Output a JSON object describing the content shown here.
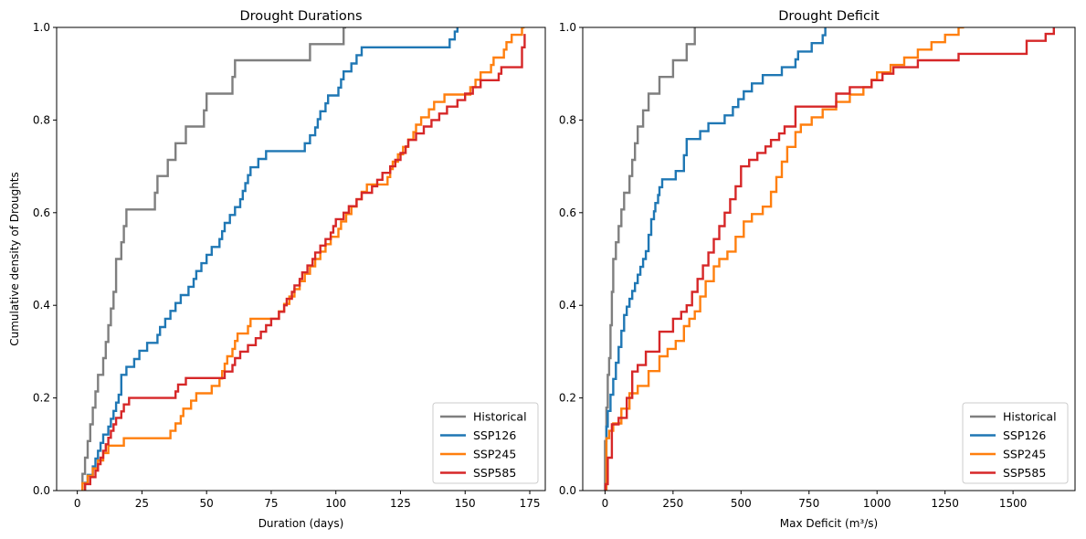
{
  "chart_data": [
    {
      "type": "line",
      "step": true,
      "title": "Drought Durations",
      "xlabel": "Duration (days)",
      "ylabel": "Cumulative density of Droughts",
      "xlim": [
        -8,
        181
      ],
      "ylim": [
        0,
        1
      ],
      "xticks": [
        0,
        25,
        50,
        75,
        100,
        125,
        150,
        175
      ],
      "yticks": [
        0.0,
        0.2,
        0.4,
        0.6,
        0.8,
        1.0
      ],
      "legend": "lower-right",
      "grid": false,
      "series": [
        {
          "name": "Historical",
          "color": "#7f7f7f",
          "x": [
            2,
            3,
            4,
            5,
            6,
            7,
            8,
            10,
            11,
            12,
            13,
            14,
            15,
            17,
            18,
            19,
            20,
            30,
            31,
            35,
            38,
            40,
            42,
            43,
            49,
            50,
            51,
            60,
            61,
            62,
            90,
            91,
            103,
            104
          ],
          "y": [
            0.036,
            0.071,
            0.107,
            0.143,
            0.179,
            0.214,
            0.25,
            0.286,
            0.321,
            0.357,
            0.393,
            0.429,
            0.5,
            0.536,
            0.571,
            0.607,
            0.607,
            0.643,
            0.679,
            0.714,
            0.75,
            0.75,
            0.786,
            0.786,
            0.821,
            0.857,
            0.857,
            0.893,
            0.929,
            0.929,
            0.964,
            0.964,
            1.0,
            1.0
          ]
        },
        {
          "name": "SSP126",
          "color": "#1f77b4",
          "x": [
            3,
            4,
            6,
            7,
            8,
            9,
            10,
            12,
            13,
            14,
            15,
            16,
            17,
            19,
            22,
            24,
            27,
            31,
            32,
            34,
            36,
            38,
            40,
            43,
            45,
            46,
            48,
            50,
            52,
            55,
            56,
            57,
            59,
            61,
            63,
            64,
            65,
            66,
            67,
            69,
            70,
            73,
            75,
            85,
            88,
            90,
            92,
            93,
            94,
            96,
            97,
            99,
            101,
            102,
            103,
            105,
            106,
            108,
            110,
            118,
            126,
            144,
            145,
            146,
            147
          ],
          "y": [
            0.017,
            0.034,
            0.052,
            0.069,
            0.086,
            0.103,
            0.121,
            0.138,
            0.155,
            0.172,
            0.19,
            0.207,
            0.25,
            0.267,
            0.284,
            0.302,
            0.319,
            0.336,
            0.353,
            0.371,
            0.388,
            0.405,
            0.422,
            0.44,
            0.457,
            0.474,
            0.491,
            0.509,
            0.526,
            0.543,
            0.56,
            0.578,
            0.595,
            0.612,
            0.629,
            0.647,
            0.664,
            0.681,
            0.698,
            0.698,
            0.716,
            0.733,
            0.733,
            0.733,
            0.75,
            0.767,
            0.784,
            0.802,
            0.819,
            0.836,
            0.853,
            0.853,
            0.87,
            0.888,
            0.905,
            0.905,
            0.922,
            0.94,
            0.957,
            0.957,
            0.957,
            0.974,
            0.974,
            0.991,
            1.0
          ]
        },
        {
          "name": "SSP245",
          "color": "#ff7f0e",
          "x": [
            2,
            4,
            6,
            8,
            10,
            12,
            18,
            36,
            38,
            40,
            41,
            44,
            46,
            52,
            55,
            56,
            57,
            58,
            60,
            61,
            62,
            66,
            67,
            75,
            78,
            80,
            82,
            84,
            86,
            88,
            90,
            92,
            94,
            96,
            98,
            101,
            102,
            104,
            106,
            108,
            110,
            112,
            120,
            121,
            122,
            124,
            126,
            128,
            130,
            131,
            133,
            136,
            138,
            142,
            152,
            154,
            156,
            160,
            161,
            165,
            166,
            168,
            170,
            172,
            173
          ],
          "y": [
            0.016,
            0.032,
            0.048,
            0.065,
            0.081,
            0.097,
            0.113,
            0.129,
            0.145,
            0.161,
            0.177,
            0.194,
            0.21,
            0.226,
            0.242,
            0.258,
            0.274,
            0.29,
            0.306,
            0.323,
            0.339,
            0.355,
            0.371,
            0.371,
            0.387,
            0.403,
            0.419,
            0.435,
            0.452,
            0.468,
            0.484,
            0.5,
            0.516,
            0.532,
            0.548,
            0.565,
            0.581,
            0.597,
            0.613,
            0.629,
            0.645,
            0.661,
            0.677,
            0.694,
            0.71,
            0.726,
            0.742,
            0.758,
            0.774,
            0.79,
            0.806,
            0.823,
            0.839,
            0.855,
            0.871,
            0.887,
            0.903,
            0.919,
            0.935,
            0.952,
            0.968,
            0.984,
            0.984,
            1.0,
            1.0
          ]
        },
        {
          "name": "SSP585",
          "color": "#d62728",
          "x": [
            3,
            5,
            7,
            8,
            9,
            10,
            11,
            12,
            13,
            14,
            15,
            17,
            18,
            20,
            24,
            27,
            38,
            39,
            42,
            44,
            56,
            57,
            60,
            61,
            63,
            66,
            69,
            71,
            73,
            75,
            78,
            80,
            81,
            83,
            84,
            86,
            87,
            89,
            91,
            92,
            94,
            96,
            98,
            99,
            100,
            103,
            105,
            108,
            110,
            113,
            114,
            116,
            118,
            121,
            123,
            125,
            127,
            128,
            131,
            134,
            137,
            140,
            143,
            147,
            150,
            153,
            156,
            163,
            164,
            172,
            173
          ],
          "y": [
            0.014,
            0.029,
            0.043,
            0.057,
            0.071,
            0.086,
            0.1,
            0.114,
            0.129,
            0.143,
            0.157,
            0.171,
            0.186,
            0.2,
            0.2,
            0.2,
            0.214,
            0.229,
            0.243,
            0.243,
            0.243,
            0.257,
            0.271,
            0.286,
            0.3,
            0.314,
            0.329,
            0.343,
            0.357,
            0.371,
            0.386,
            0.4,
            0.414,
            0.429,
            0.443,
            0.457,
            0.471,
            0.486,
            0.5,
            0.514,
            0.529,
            0.543,
            0.557,
            0.571,
            0.586,
            0.6,
            0.614,
            0.629,
            0.643,
            0.643,
            0.657,
            0.671,
            0.686,
            0.7,
            0.714,
            0.729,
            0.743,
            0.757,
            0.771,
            0.786,
            0.8,
            0.814,
            0.829,
            0.843,
            0.857,
            0.871,
            0.886,
            0.9,
            0.914,
            0.957,
            0.986
          ]
        }
      ]
    },
    {
      "type": "line",
      "step": true,
      "title": "Drought Deficit",
      "xlabel": "Max Deficit (m³/s)",
      "ylabel": "",
      "xlim": [
        -82,
        1728
      ],
      "ylim": [
        0,
        1
      ],
      "xticks": [
        0,
        250,
        500,
        750,
        1000,
        1250,
        1500
      ],
      "yticks": [
        0.0,
        0.2,
        0.4,
        0.6,
        0.8,
        1.0
      ],
      "legend": "lower-right",
      "grid": false,
      "series": [
        {
          "name": "Historical",
          "color": "#7f7f7f",
          "x": [
            0,
            5,
            10,
            15,
            20,
            25,
            30,
            40,
            50,
            60,
            70,
            80,
            90,
            100,
            110,
            120,
            140,
            150,
            160,
            180,
            190,
            200,
            220,
            240,
            250,
            270,
            290,
            300,
            310,
            320,
            330
          ],
          "y": [
            0.107,
            0.179,
            0.25,
            0.286,
            0.357,
            0.429,
            0.5,
            0.536,
            0.571,
            0.607,
            0.643,
            0.643,
            0.679,
            0.714,
            0.75,
            0.786,
            0.821,
            0.821,
            0.857,
            0.857,
            0.857,
            0.893,
            0.893,
            0.893,
            0.929,
            0.929,
            0.929,
            0.964,
            0.964,
            0.964,
            1.0
          ]
        },
        {
          "name": "SSP126",
          "color": "#1f77b4",
          "x": [
            5,
            10,
            20,
            30,
            40,
            50,
            60,
            70,
            80,
            90,
            100,
            110,
            120,
            130,
            140,
            150,
            160,
            170,
            180,
            185,
            195,
            200,
            210,
            260,
            290,
            300,
            350,
            380,
            440,
            470,
            490,
            510,
            540,
            580,
            650,
            700,
            710,
            760,
            800,
            810
          ],
          "y": [
            0.138,
            0.172,
            0.207,
            0.241,
            0.276,
            0.31,
            0.345,
            0.379,
            0.397,
            0.414,
            0.431,
            0.448,
            0.466,
            0.483,
            0.5,
            0.517,
            0.552,
            0.586,
            0.603,
            0.621,
            0.638,
            0.655,
            0.672,
            0.69,
            0.724,
            0.759,
            0.776,
            0.793,
            0.81,
            0.828,
            0.845,
            0.862,
            0.879,
            0.897,
            0.914,
            0.931,
            0.948,
            0.966,
            0.983,
            1.0
          ]
        },
        {
          "name": "SSP245",
          "color": "#ff7f0e",
          "x": [
            5,
            15,
            30,
            60,
            90,
            120,
            160,
            200,
            230,
            260,
            290,
            310,
            330,
            350,
            370,
            400,
            420,
            450,
            480,
            510,
            540,
            580,
            610,
            630,
            650,
            670,
            700,
            720,
            760,
            800,
            850,
            900,
            950,
            980,
            1000,
            1050,
            1100,
            1150,
            1200,
            1250,
            1300,
            1320
          ],
          "y": [
            0.113,
            0.129,
            0.145,
            0.177,
            0.21,
            0.226,
            0.258,
            0.29,
            0.306,
            0.323,
            0.355,
            0.371,
            0.387,
            0.419,
            0.452,
            0.484,
            0.5,
            0.516,
            0.548,
            0.581,
            0.597,
            0.613,
            0.645,
            0.677,
            0.71,
            0.742,
            0.774,
            0.79,
            0.806,
            0.823,
            0.839,
            0.855,
            0.871,
            0.887,
            0.903,
            0.919,
            0.935,
            0.952,
            0.968,
            0.984,
            1.0,
            1.0
          ]
        },
        {
          "name": "SSP585",
          "color": "#d62728",
          "x": [
            2,
            10,
            25,
            50,
            80,
            100,
            120,
            150,
            200,
            250,
            280,
            300,
            320,
            340,
            360,
            380,
            400,
            420,
            440,
            460,
            480,
            500,
            530,
            560,
            590,
            610,
            640,
            660,
            700,
            780,
            850,
            900,
            980,
            1020,
            1060,
            1150,
            1300,
            1550,
            1620,
            1650
          ],
          "y": [
            0.014,
            0.071,
            0.143,
            0.157,
            0.2,
            0.257,
            0.271,
            0.3,
            0.343,
            0.371,
            0.386,
            0.4,
            0.429,
            0.457,
            0.486,
            0.514,
            0.543,
            0.571,
            0.6,
            0.629,
            0.657,
            0.7,
            0.714,
            0.729,
            0.743,
            0.757,
            0.771,
            0.786,
            0.829,
            0.829,
            0.857,
            0.871,
            0.886,
            0.9,
            0.914,
            0.929,
            0.943,
            0.971,
            0.986,
            1.0
          ]
        }
      ]
    }
  ]
}
